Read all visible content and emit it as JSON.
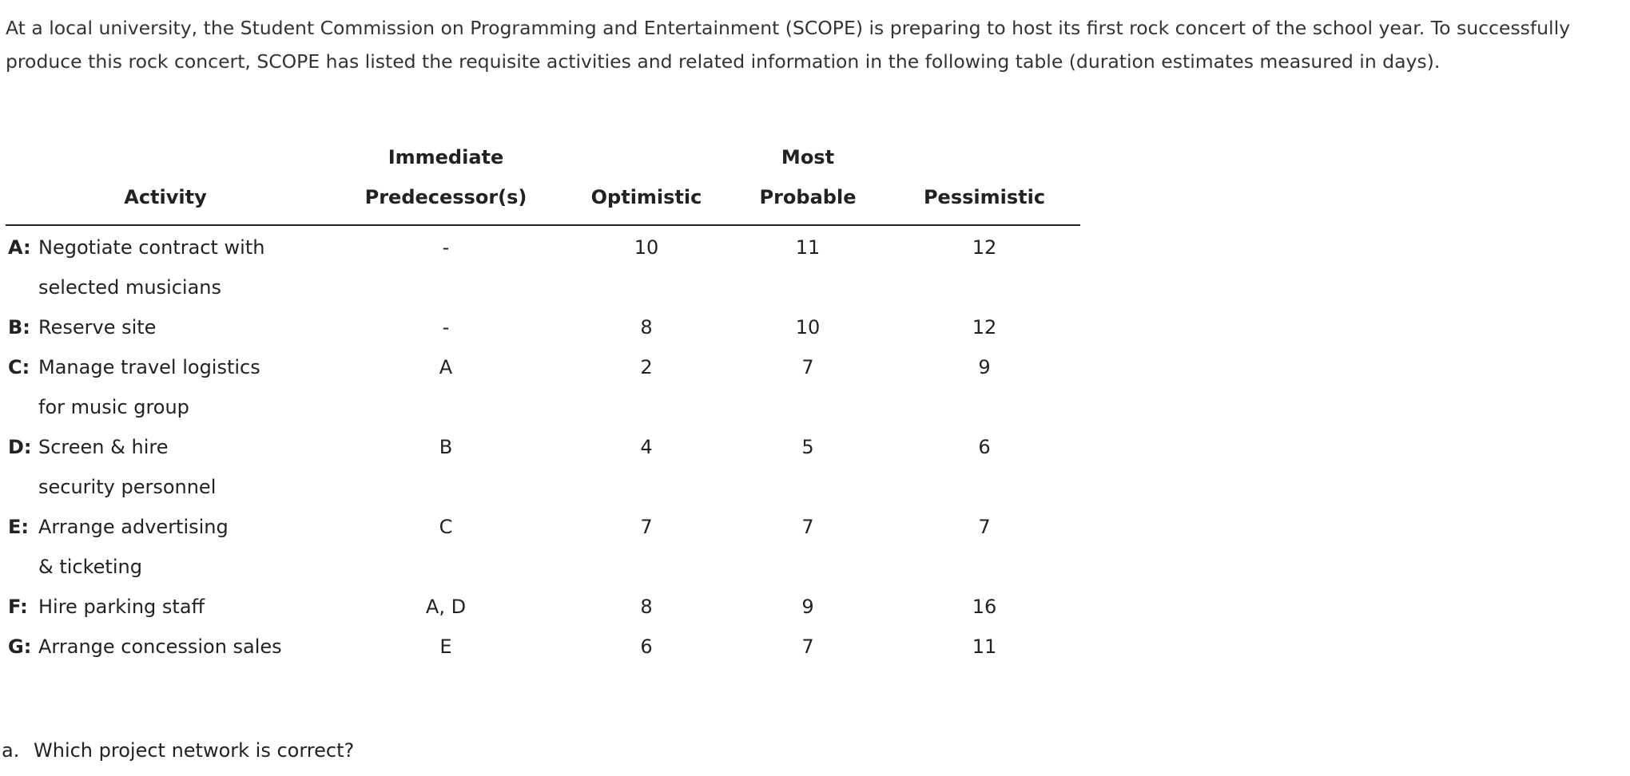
{
  "intro": "At a local university, the Student Commission on Programming and Entertainment (SCOPE) is preparing to host its first rock concert of the school year. To successfully produce this rock concert, SCOPE has listed the requisite activities and related information in the following table (duration estimates measured in days).",
  "table": {
    "header": [
      [
        "Activity"
      ],
      [
        "Immediate",
        "Predecessor(s)"
      ],
      [
        "Optimistic"
      ],
      [
        "Most",
        "Probable"
      ],
      [
        "Pessimistic"
      ]
    ],
    "rows": [
      {
        "label": "A:",
        "activity": [
          "Negotiate contract with",
          "selected musicians"
        ],
        "predecessors": "-",
        "optimistic": "10",
        "most_probable": "11",
        "pessimistic": "12"
      },
      {
        "label": "B:",
        "activity": [
          "Reserve site"
        ],
        "predecessors": "-",
        "optimistic": "8",
        "most_probable": "10",
        "pessimistic": "12"
      },
      {
        "label": "C:",
        "activity": [
          "Manage travel logistics",
          "for music group"
        ],
        "predecessors": "A",
        "optimistic": "2",
        "most_probable": "7",
        "pessimistic": "9"
      },
      {
        "label": "D:",
        "activity": [
          "Screen & hire",
          "security personnel"
        ],
        "predecessors": "B",
        "optimistic": "4",
        "most_probable": "5",
        "pessimistic": "6"
      },
      {
        "label": "E:",
        "activity": [
          "Arrange advertising",
          "& ticketing"
        ],
        "predecessors": "C",
        "optimistic": "7",
        "most_probable": "7",
        "pessimistic": "7"
      },
      {
        "label": "F:",
        "activity": [
          "Hire parking staff"
        ],
        "predecessors": "A, D",
        "optimistic": "8",
        "most_probable": "9",
        "pessimistic": "16"
      },
      {
        "label": "G:",
        "activity": [
          "Arrange concession sales"
        ],
        "predecessors": "E",
        "optimistic": "6",
        "most_probable": "7",
        "pessimistic": "11"
      }
    ]
  },
  "question": {
    "marker": "a.",
    "text": "Which project network is correct?"
  }
}
